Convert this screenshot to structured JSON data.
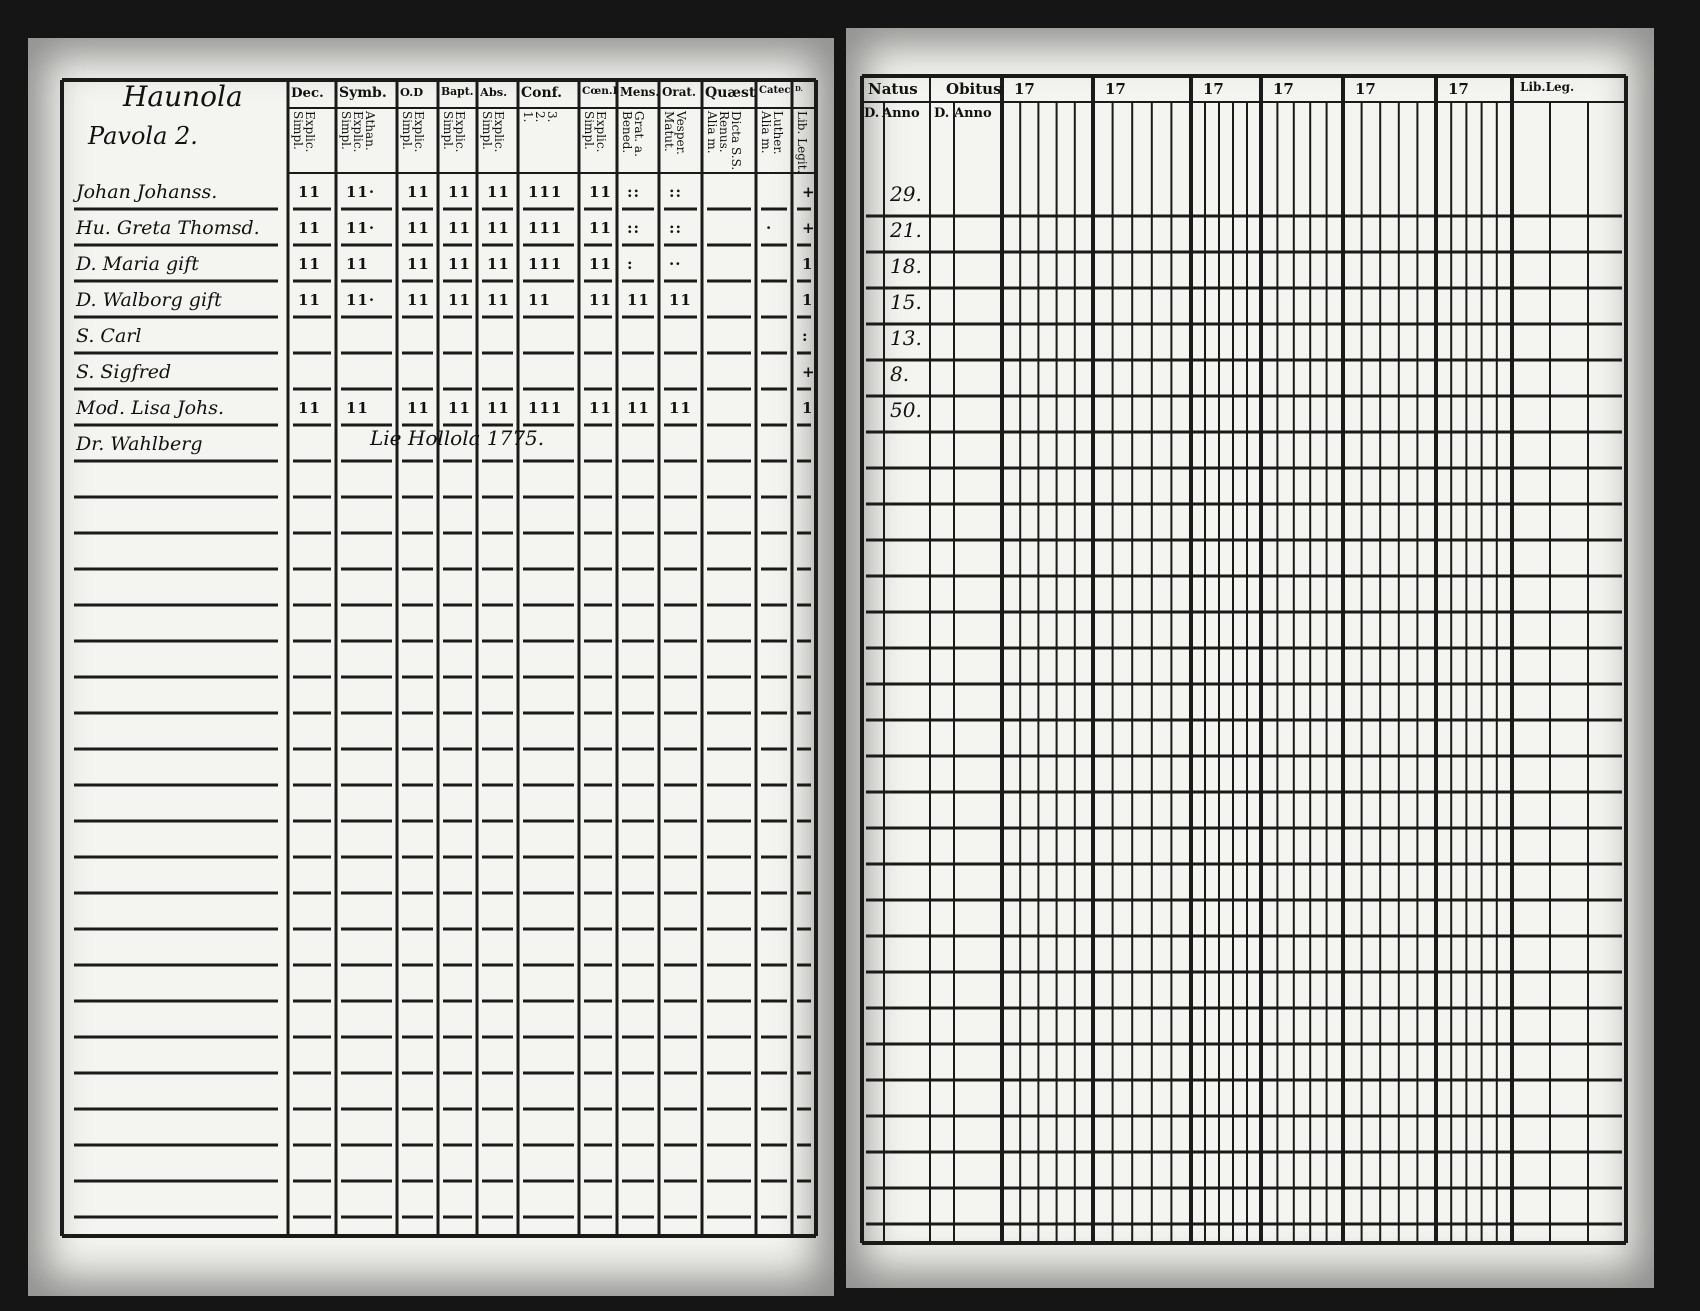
{
  "left_page": {
    "village": "Haunola",
    "farm": "Pavola 2.",
    "columns": [
      {
        "head": "Dec.",
        "sub": "Explic.\nSimpl."
      },
      {
        "head": "Symb.",
        "sub": "Athan.\nExplic.\nSimpl."
      },
      {
        "head": "O.D",
        "sub": "Explic.\nSimpl."
      },
      {
        "head": "Bapt.",
        "sub": "Explic.\nSimpl."
      },
      {
        "head": "Abs.",
        "sub": "Explic.\nSimpl."
      },
      {
        "head": "Conf.",
        "sub": "3.\n2.\n1."
      },
      {
        "head": "Cœn.D",
        "sub": "Explic.\nSimpl."
      },
      {
        "head": "Mens.",
        "sub": "Grat. a.\nBened."
      },
      {
        "head": "Orat.",
        "sub": "Vesper.\nMatut."
      },
      {
        "head": "Quæst.",
        "sub": "Dicta S.S.\nRenus.\nAlia m."
      },
      {
        "head": "Catech.",
        "sub": "Luther.\nAlia m."
      },
      {
        "head": "D.",
        "sub": "Lib. Legit."
      }
    ],
    "persons": [
      {
        "name": "Johan Johanss.",
        "marks": [
          "11",
          "11·",
          "11",
          "11",
          "11",
          "111",
          "11",
          "::",
          "::",
          "",
          "",
          "+"
        ]
      },
      {
        "name": "Hu. Greta Thomsd.",
        "marks": [
          "11",
          "11·",
          "11",
          "11",
          "11",
          "111",
          "11",
          "::",
          "::",
          "",
          "·",
          "+"
        ]
      },
      {
        "name": "D. Maria gift",
        "marks": [
          "11",
          "11",
          "11",
          "11",
          "11",
          "111",
          "11",
          ":",
          "··",
          "",
          "",
          "1"
        ]
      },
      {
        "name": "D. Walborg gift",
        "marks": [
          "11",
          "11·",
          "11",
          "11",
          "11",
          "11",
          "11",
          "11",
          "11",
          "",
          "",
          "1"
        ]
      },
      {
        "name": "S. Carl",
        "marks": [
          "",
          "",
          "",
          "",
          "",
          "",
          "",
          "",
          "",
          "",
          "",
          ":"
        ]
      },
      {
        "name": "S. Sigfred",
        "marks": [
          "",
          "",
          "",
          "",
          "",
          "",
          "",
          "",
          "",
          "",
          "",
          "+"
        ]
      },
      {
        "name": "Mod. Lisa Johs.",
        "marks": [
          "11",
          "11",
          "11",
          "11",
          "11",
          "111",
          "11",
          "11",
          "11",
          "",
          "",
          "1"
        ]
      },
      {
        "name": "Dr. Wahlberg",
        "marks": [
          "",
          "",
          "",
          "",
          "",
          "",
          "",
          "",
          "",
          "",
          "",
          ""
        ]
      }
    ],
    "note": "Lie Hollola 1775."
  },
  "right_page": {
    "natus": "Natus",
    "obitus": "Obitus",
    "day": "D.",
    "anno": "Anno",
    "years": [
      "17",
      "17",
      "17",
      "17",
      "17",
      "17"
    ],
    "ages": [
      "29.",
      "21.",
      "18.",
      "15.",
      "13.",
      "8.",
      "50."
    ],
    "last_head": "Lib.Leg."
  }
}
